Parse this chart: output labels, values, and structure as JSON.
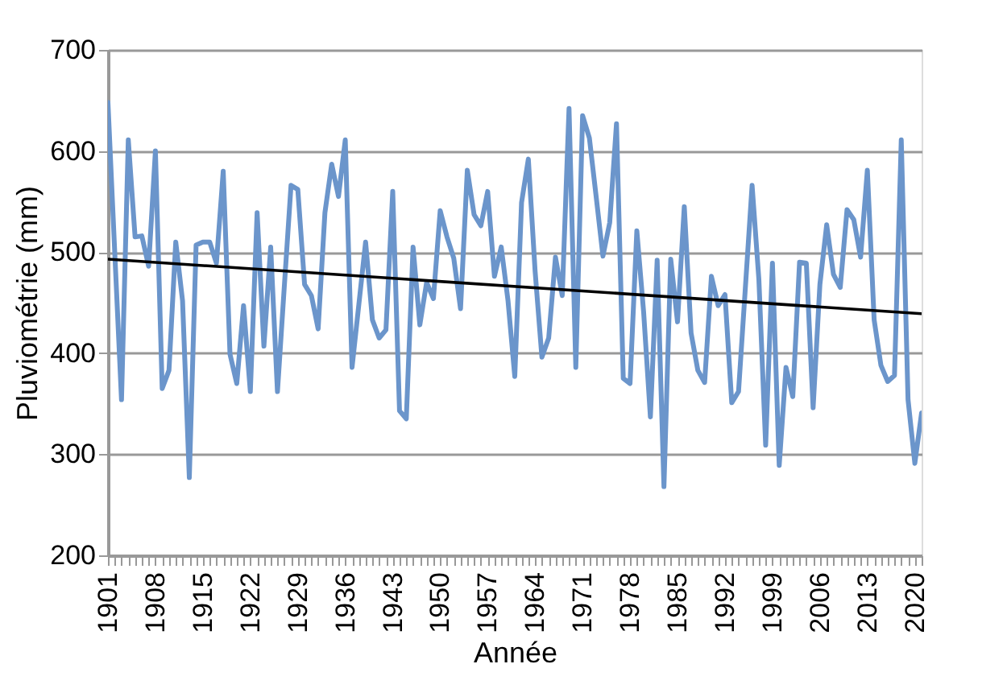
{
  "chart_data": {
    "type": "line",
    "xlabel": "Année",
    "ylabel": "Pluviométrie (mm)",
    "x": [
      1901,
      1902,
      1903,
      1904,
      1905,
      1906,
      1907,
      1908,
      1909,
      1910,
      1911,
      1912,
      1913,
      1914,
      1915,
      1916,
      1917,
      1918,
      1919,
      1920,
      1921,
      1922,
      1923,
      1924,
      1925,
      1926,
      1927,
      1928,
      1929,
      1930,
      1931,
      1932,
      1933,
      1934,
      1935,
      1936,
      1937,
      1938,
      1939,
      1940,
      1941,
      1942,
      1943,
      1944,
      1945,
      1946,
      1947,
      1948,
      1949,
      1950,
      1951,
      1952,
      1953,
      1954,
      1955,
      1956,
      1957,
      1958,
      1959,
      1960,
      1961,
      1962,
      1963,
      1964,
      1965,
      1966,
      1967,
      1968,
      1969,
      1970,
      1971,
      1972,
      1973,
      1974,
      1975,
      1976,
      1977,
      1978,
      1979,
      1980,
      1981,
      1982,
      1983,
      1984,
      1985,
      1986,
      1987,
      1988,
      1989,
      1990,
      1991,
      1992,
      1993,
      1994,
      1995,
      1996,
      1997,
      1998,
      1999,
      2000,
      2001,
      2002,
      2003,
      2004,
      2005,
      2006,
      2007,
      2008,
      2009,
      2010,
      2011,
      2012,
      2013,
      2014,
      2015,
      2016,
      2017,
      2018,
      2019,
      2020,
      2021
    ],
    "series": [
      {
        "color": "#6b95cb",
        "values": [
          648,
          500,
          354,
          611,
          515,
          516,
          486,
          600,
          365,
          383,
          510,
          452,
          277,
          507,
          510,
          510,
          489,
          580,
          399,
          370,
          447,
          362,
          539,
          407,
          505,
          362,
          465,
          566,
          562,
          468,
          457,
          424,
          539,
          587,
          555,
          611,
          386,
          448,
          510,
          433,
          415,
          423,
          560,
          343,
          335,
          505,
          428,
          470,
          454,
          541,
          515,
          494,
          444,
          581,
          537,
          526,
          560,
          476,
          505,
          452,
          377,
          549,
          592,
          481,
          396,
          415,
          495,
          457,
          642,
          386,
          635,
          613,
          555,
          496,
          529,
          627,
          375,
          370,
          521,
          441,
          337,
          492,
          268,
          493,
          431,
          545,
          420,
          383,
          371,
          476,
          447,
          458,
          351,
          362,
          464,
          566,
          473,
          309,
          489,
          289,
          386,
          357,
          490,
          489,
          346,
          468,
          527,
          478,
          465,
          542,
          532,
          495,
          581,
          433,
          388,
          372,
          378,
          611,
          354,
          291,
          341
        ]
      },
      {
        "type": "line",
        "color": "#000000",
        "x": [
          1901,
          2021
        ],
        "values": [
          493,
          439
        ]
      }
    ],
    "xlim": [
      1901,
      2021
    ],
    "xticks": [
      1901,
      {
        "value": 1902,
        "label": null
      },
      {
        "value": 1903,
        "label": null
      },
      {
        "value": 1904,
        "label": null
      },
      {
        "value": 1905,
        "label": null
      },
      {
        "value": 1906,
        "label": null
      },
      {
        "value": 1907,
        "label": null
      },
      1908,
      {
        "value": 1909,
        "label": null
      },
      {
        "value": 1910,
        "label": null
      },
      {
        "value": 1911,
        "label": null
      },
      {
        "value": 1912,
        "label": null
      },
      {
        "value": 1913,
        "label": null
      },
      {
        "value": 1914,
        "label": null
      },
      1915,
      {
        "value": 1916,
        "label": null
      },
      {
        "value": 1917,
        "label": null
      },
      {
        "value": 1918,
        "label": null
      },
      {
        "value": 1919,
        "label": null
      },
      {
        "value": 1920,
        "label": null
      },
      {
        "value": 1921,
        "label": null
      },
      1922,
      {
        "value": 1923,
        "label": null
      },
      {
        "value": 1924,
        "label": null
      },
      {
        "value": 1925,
        "label": null
      },
      {
        "value": 1926,
        "label": null
      },
      {
        "value": 1927,
        "label": null
      },
      {
        "value": 1928,
        "label": null
      },
      1929,
      {
        "value": 1930,
        "label": null
      },
      {
        "value": 1931,
        "label": null
      },
      {
        "value": 1932,
        "label": null
      },
      {
        "value": 1933,
        "label": null
      },
      {
        "value": 1934,
        "label": null
      },
      {
        "value": 1935,
        "label": null
      },
      1936,
      {
        "value": 1937,
        "label": null
      },
      {
        "value": 1938,
        "label": null
      },
      {
        "value": 1939,
        "label": null
      },
      {
        "value": 1940,
        "label": null
      },
      {
        "value": 1941,
        "label": null
      },
      {
        "value": 1942,
        "label": null
      },
      1943,
      {
        "value": 1944,
        "label": null
      },
      {
        "value": 1945,
        "label": null
      },
      {
        "value": 1946,
        "label": null
      },
      {
        "value": 1947,
        "label": null
      },
      {
        "value": 1948,
        "label": null
      },
      {
        "value": 1949,
        "label": null
      },
      1950,
      {
        "value": 1951,
        "label": null
      },
      {
        "value": 1952,
        "label": null
      },
      {
        "value": 1953,
        "label": null
      },
      {
        "value": 1954,
        "label": null
      },
      {
        "value": 1955,
        "label": null
      },
      {
        "value": 1956,
        "label": null
      },
      1957,
      {
        "value": 1958,
        "label": null
      },
      {
        "value": 1959,
        "label": null
      },
      {
        "value": 1960,
        "label": null
      },
      {
        "value": 1961,
        "label": null
      },
      {
        "value": 1962,
        "label": null
      },
      {
        "value": 1963,
        "label": null
      },
      1964,
      {
        "value": 1965,
        "label": null
      },
      {
        "value": 1966,
        "label": null
      },
      {
        "value": 1967,
        "label": null
      },
      {
        "value": 1968,
        "label": null
      },
      {
        "value": 1969,
        "label": null
      },
      {
        "value": 1970,
        "label": null
      },
      1971,
      {
        "value": 1972,
        "label": null
      },
      {
        "value": 1973,
        "label": null
      },
      {
        "value": 1974,
        "label": null
      },
      {
        "value": 1975,
        "label": null
      },
      {
        "value": 1976,
        "label": null
      },
      {
        "value": 1977,
        "label": null
      },
      1978,
      {
        "value": 1979,
        "label": null
      },
      {
        "value": 1980,
        "label": null
      },
      {
        "value": 1981,
        "label": null
      },
      {
        "value": 1982,
        "label": null
      },
      {
        "value": 1983,
        "label": null
      },
      {
        "value": 1984,
        "label": null
      },
      1985,
      {
        "value": 1986,
        "label": null
      },
      {
        "value": 1987,
        "label": null
      },
      {
        "value": 1988,
        "label": null
      },
      {
        "value": 1989,
        "label": null
      },
      {
        "value": 1990,
        "label": null
      },
      {
        "value": 1991,
        "label": null
      },
      1992,
      {
        "value": 1993,
        "label": null
      },
      {
        "value": 1994,
        "label": null
      },
      {
        "value": 1995,
        "label": null
      },
      {
        "value": 1996,
        "label": null
      },
      {
        "value": 1997,
        "label": null
      },
      {
        "value": 1998,
        "label": null
      },
      1999,
      {
        "value": 2000,
        "label": null
      },
      {
        "value": 2001,
        "label": null
      },
      {
        "value": 2002,
        "label": null
      },
      {
        "value": 2003,
        "label": null
      },
      {
        "value": 2004,
        "label": null
      },
      {
        "value": 2005,
        "label": null
      },
      2006,
      {
        "value": 2007,
        "label": null
      },
      {
        "value": 2008,
        "label": null
      },
      {
        "value": 2009,
        "label": null
      },
      {
        "value": 2010,
        "label": null
      },
      {
        "value": 2011,
        "label": null
      },
      {
        "value": 2012,
        "label": null
      },
      2013,
      {
        "value": 2014,
        "label": null
      },
      {
        "value": 2015,
        "label": null
      },
      {
        "value": 2016,
        "label": null
      },
      {
        "value": 2017,
        "label": null
      },
      {
        "value": 2018,
        "label": null
      },
      {
        "value": 2019,
        "label": null
      },
      2020,
      {
        "value": 2021,
        "label": null
      }
    ],
    "ylim": [
      200,
      700
    ],
    "yticks": [
      200,
      300,
      400,
      500,
      600,
      700
    ],
    "grid": "y"
  }
}
